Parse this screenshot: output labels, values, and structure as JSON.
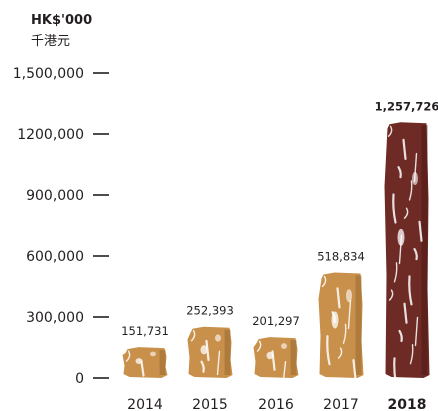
{
  "chart_data": {
    "type": "bar",
    "unit_label": "HK$'000",
    "unit_label_zh": "千港元",
    "categories": [
      "2014",
      "2015",
      "2016",
      "2017",
      "2018"
    ],
    "values": [
      151731,
      252393,
      201297,
      518834,
      1257726
    ],
    "value_labels": [
      "151,731",
      "252,393",
      "201,297",
      "518,834",
      "1,257,726"
    ],
    "emphasized_category": "2018",
    "ylim": [
      0,
      1500000
    ],
    "yticks": [
      0,
      300000,
      600000,
      900000,
      1200000,
      1500000
    ],
    "ytick_labels": [
      "0",
      "300,000",
      "600,000",
      "900,000",
      "1200,000",
      "1,500,000"
    ],
    "grid": false,
    "colors": {
      "bar": "#c8904a",
      "bar_shade": "#9b6a32",
      "highlight_bar": "#6e2a24",
      "highlight_shade": "#4e1a16",
      "texture": "#ffffff",
      "axis": "#231f20"
    }
  }
}
